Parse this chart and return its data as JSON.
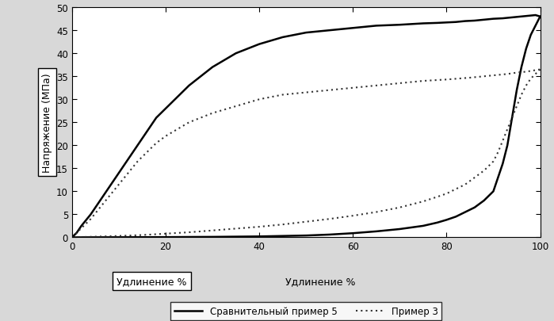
{
  "ylabel": "Напряжение (МПа)",
  "xlabel1": "Удлинение %",
  "xlabel2": "Удлинение %",
  "xlim": [
    0,
    100
  ],
  "ylim": [
    0,
    50
  ],
  "xticks": [
    0,
    20,
    40,
    60,
    80,
    100
  ],
  "yticks": [
    0,
    5,
    10,
    15,
    20,
    25,
    30,
    35,
    40,
    45,
    50
  ],
  "legend_labels": [
    "Сравнительный пример 5",
    "Пример 3"
  ],
  "bg_color": "#d8d8d8",
  "plot_bg": "#ffffff",
  "line_color_1": "#000000",
  "line_color_2": "#333333",
  "comp5_load_x": [
    0,
    1,
    2,
    4,
    6,
    8,
    10,
    12,
    14,
    16,
    18,
    20,
    25,
    30,
    35,
    40,
    45,
    50,
    55,
    60,
    65,
    70,
    75,
    78,
    80,
    82,
    84,
    86,
    88,
    90,
    92,
    93,
    94,
    95,
    96,
    97,
    98,
    99,
    100
  ],
  "comp5_load_y": [
    0,
    1,
    2.5,
    5,
    8,
    11,
    14,
    17,
    20,
    23,
    26,
    28,
    33,
    37,
    40,
    42,
    43.5,
    44.5,
    45,
    45.5,
    46,
    46.2,
    46.5,
    46.6,
    46.7,
    46.8,
    47,
    47.1,
    47.3,
    47.5,
    47.6,
    47.7,
    47.8,
    47.9,
    48,
    48.1,
    48.2,
    48.3,
    48
  ],
  "comp5_unload_x": [
    100,
    99,
    98,
    97,
    96,
    95,
    94,
    93,
    92,
    91,
    90,
    88,
    86,
    84,
    82,
    80,
    78,
    75,
    70,
    65,
    60,
    55,
    50,
    45,
    40,
    35,
    30,
    25,
    20,
    15,
    10,
    5,
    2,
    0
  ],
  "comp5_unload_y": [
    48,
    46,
    44,
    41,
    37,
    32,
    26,
    20,
    16,
    13,
    10,
    8,
    6.5,
    5.5,
    4.5,
    3.8,
    3.2,
    2.5,
    1.8,
    1.3,
    0.9,
    0.6,
    0.4,
    0.3,
    0.2,
    0.15,
    0.1,
    0.08,
    0.05,
    0.03,
    0.02,
    0.01,
    0.005,
    0
  ],
  "prim3_load_x": [
    0,
    1,
    2,
    4,
    6,
    8,
    10,
    12,
    14,
    16,
    18,
    20,
    25,
    30,
    35,
    40,
    45,
    50,
    55,
    60,
    65,
    70,
    75,
    80,
    85,
    90,
    93,
    95,
    97,
    100
  ],
  "prim3_load_y": [
    0,
    1,
    2,
    4,
    6.5,
    9,
    11.5,
    14,
    16.5,
    18.5,
    20.5,
    22,
    25,
    27,
    28.5,
    30,
    31,
    31.5,
    32,
    32.5,
    33,
    33.5,
    34,
    34.3,
    34.7,
    35.2,
    35.5,
    35.8,
    36,
    36.5
  ],
  "prim3_unload_x": [
    100,
    99,
    98,
    97,
    96,
    95,
    94,
    93,
    92,
    91,
    90,
    88,
    86,
    84,
    82,
    80,
    78,
    75,
    70,
    65,
    60,
    55,
    50,
    45,
    40,
    35,
    30,
    25,
    20,
    15,
    10,
    5,
    2,
    0
  ],
  "prim3_unload_y": [
    36.5,
    35.5,
    34.5,
    33,
    31,
    28.5,
    26,
    23.5,
    21,
    18.5,
    16.5,
    14.5,
    13,
    11.5,
    10.5,
    9.5,
    8.8,
    7.8,
    6.5,
    5.5,
    4.7,
    4.0,
    3.4,
    2.8,
    2.3,
    1.9,
    1.5,
    1.1,
    0.8,
    0.5,
    0.3,
    0.15,
    0.07,
    0
  ]
}
